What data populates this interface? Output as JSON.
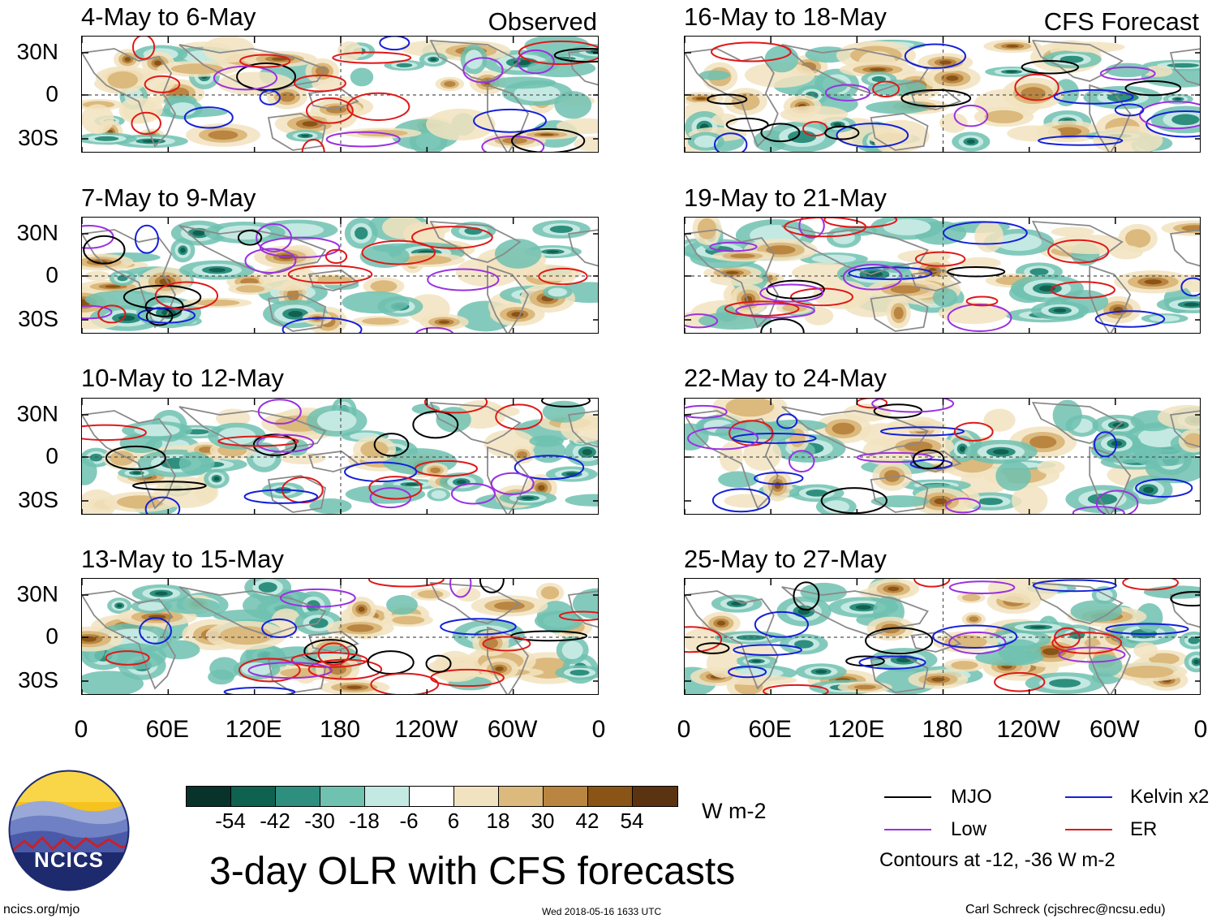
{
  "left_column": {
    "corner_label": "Observed",
    "panels": [
      {
        "title": "4-May to 6-May"
      },
      {
        "title": "7-May to 9-May"
      },
      {
        "title": "10-May to 12-May"
      },
      {
        "title": "13-May to 15-May"
      }
    ]
  },
  "right_column": {
    "corner_label": "CFS Forecast",
    "panels": [
      {
        "title": "16-May to 18-May"
      },
      {
        "title": "19-May to 21-May"
      },
      {
        "title": "22-May to 24-May"
      },
      {
        "title": "25-May to 27-May"
      }
    ]
  },
  "y_axis_labels": [
    "30N",
    "0",
    "30S"
  ],
  "x_axis_labels": [
    "0",
    "60E",
    "120E",
    "180",
    "120W",
    "60W",
    "0"
  ],
  "colorbar": {
    "colors": [
      "#08332b",
      "#0f6150",
      "#2e8f7e",
      "#6fc1b0",
      "#c4e9e2",
      "#ffffff",
      "#f2e3c0",
      "#dcb97d",
      "#b98540",
      "#8a5417",
      "#5b3310"
    ],
    "labels": [
      "-54",
      "-42",
      "-30",
      "-18",
      "-6",
      "6",
      "18",
      "30",
      "42",
      "54"
    ],
    "units": "W m-2"
  },
  "main_title": "3-day OLR with CFS forecasts",
  "legend": {
    "items": [
      {
        "label": "MJO",
        "color": "#000000"
      },
      {
        "label": "Kelvin x2",
        "color": "#1420d8"
      },
      {
        "label": "Low",
        "color": "#9b30e0"
      },
      {
        "label": "ER",
        "color": "#e01818"
      }
    ],
    "note": "Contours at -12, -36 W m-2"
  },
  "logo": {
    "text": "NCICS"
  },
  "footer": {
    "url": "ncics.org/mjo",
    "timestamp": "Wed 2018-05-16 1633 UTC",
    "author": "Carl Schreck (cjschrec@ncsu.edu)"
  }
}
